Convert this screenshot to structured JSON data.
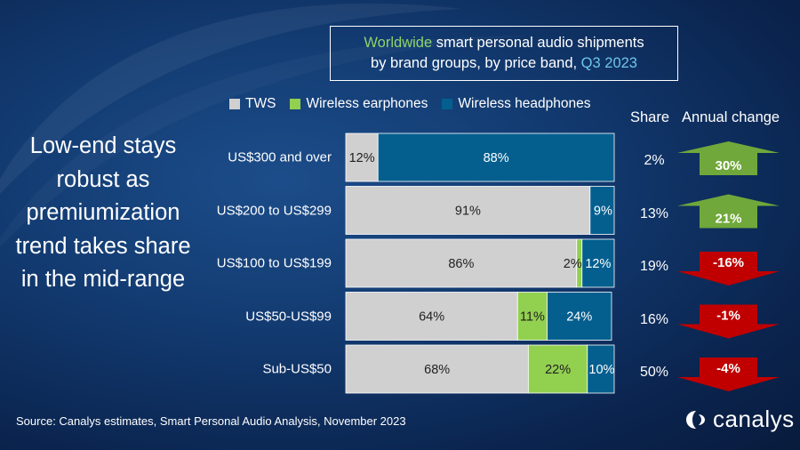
{
  "title": {
    "part1": "Worldwide",
    "part2": " smart personal audio shipments",
    "line2": "by brand groups, by price band, ",
    "period": "Q3 2023"
  },
  "headline": "Low-end stays robust as premiumization trend takes share in the mid-range",
  "column_headers": {
    "share": "Share",
    "annual_change": "Annual change"
  },
  "source": "Source: Canalys estimates, Smart Personal Audio Analysis, November 2023",
  "logo": {
    "text": "canalys"
  },
  "colors": {
    "tws": "#d0d0d0",
    "wireless_earphones": "#92d050",
    "wireless_headphones": "#045f8f",
    "up": "#70a83b",
    "down": "#c00000"
  },
  "chart_data": {
    "type": "bar",
    "stacked": true,
    "orientation": "horizontal",
    "categories": [
      "US$300 and over",
      "US$200 to US$299",
      "US$100 to US$199",
      "US$50-US$99",
      "Sub-US$50"
    ],
    "series": [
      {
        "name": "TWS",
        "values": [
          12,
          91,
          86,
          64,
          68
        ],
        "labels": [
          "12%",
          "91%",
          "86%",
          "64%",
          "68%"
        ]
      },
      {
        "name": "Wireless earphones",
        "values": [
          0,
          0,
          2,
          11,
          22
        ],
        "labels": [
          "",
          "",
          "2%",
          "11%",
          "22%"
        ]
      },
      {
        "name": "Wireless headphones",
        "values": [
          88,
          9,
          12,
          24,
          10
        ],
        "labels": [
          "88%",
          "9%",
          "12%",
          "24%",
          "10%"
        ]
      }
    ],
    "xlim": [
      0,
      100
    ],
    "legend": "top",
    "share": [
      "2%",
      "13%",
      "19%",
      "16%",
      "50%"
    ],
    "annual_change": [
      {
        "label": "30%",
        "value": 30,
        "direction": "up"
      },
      {
        "label": "21%",
        "value": 21,
        "direction": "up"
      },
      {
        "label": "-16%",
        "value": -16,
        "direction": "down"
      },
      {
        "label": "-1%",
        "value": -1,
        "direction": "down"
      },
      {
        "label": "-4%",
        "value": -4,
        "direction": "down"
      }
    ]
  }
}
